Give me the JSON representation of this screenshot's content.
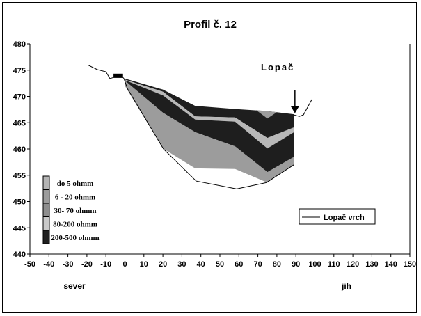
{
  "chart_data": {
    "type": "area",
    "title": "Profil č. 12",
    "xlabel_left": "sever",
    "xlabel_right": "jih",
    "annotation": "Lopač",
    "xlim": [
      -50,
      150
    ],
    "ylim": [
      440,
      480
    ],
    "xticks": [
      -50,
      -40,
      -30,
      -20,
      -10,
      0,
      10,
      20,
      30,
      40,
      50,
      60,
      70,
      80,
      90,
      100,
      110,
      120,
      130,
      140,
      150
    ],
    "yticks": [
      440,
      445,
      450,
      455,
      460,
      465,
      470,
      475,
      480
    ],
    "grid": false,
    "legend_layers": {
      "placement": "bottom-left",
      "entries": [
        {
          "label": "do 5 ohmm",
          "color": "#b4b4b4"
        },
        {
          "label": "6 - 20 ohmm",
          "color": "#9c9c9c"
        },
        {
          "label": "30- 70 ohmm",
          "color": "#8e8e8e"
        },
        {
          "label": "80-200 ohmm",
          "color": "#c8c8c8"
        },
        {
          "label": "200-500 ohmm",
          "color": "#202020"
        }
      ]
    },
    "legend_series": {
      "placement": "bottom-right",
      "label": "Lopač vrch"
    },
    "stations_x": [
      0,
      20,
      37,
      58,
      75,
      89
    ],
    "boundaries": [
      [
        473.4,
        471.3,
        468.2,
        467.6,
        467.2,
        466.6
      ],
      [
        473.2,
        470.9,
        466.2,
        466.0,
        462.1,
        464.1
      ],
      [
        473.1,
        470.2,
        465.6,
        465.2,
        460.1,
        463.2
      ],
      [
        473.0,
        466.9,
        463.2,
        460.5,
        455.6,
        458.5
      ],
      [
        472.0,
        460.1,
        456.3,
        456.2,
        453.6,
        457.0
      ]
    ],
    "layer_colors": [
      "#1e1e1e",
      "#b8b8b8",
      "#1e1e1e",
      "#9c9c9c"
    ],
    "series": [
      {
        "name": "Lopač vrch",
        "x": [
          -19.6,
          -14.5,
          -10,
          -7.9,
          -6,
          -1,
          -0.5,
          1.3,
          20.3,
          37.5,
          58.8,
          74.5,
          89
        ],
        "y": [
          476.0,
          475.1,
          474.7,
          473.4,
          473.6,
          473.6,
          473.4,
          471.5,
          460.0,
          453.9,
          452.4,
          453.6,
          457.0
        ]
      },
      {
        "name": "Lopač vrch (right)",
        "x": [
          88.8,
          91.8,
          94,
          98.4
        ],
        "y": [
          466.5,
          466.2,
          466.5,
          469.4
        ]
      }
    ],
    "top_triangle": {
      "x": [
        69,
        75,
        80
      ],
      "y": [
        467.4,
        465.8,
        467.0
      ],
      "color": "#9c9c9c"
    },
    "marker": {
      "x": [
        -6,
        -1
      ],
      "y": 474.0
    },
    "arrow": {
      "x": 89.5,
      "y_from": 471.2,
      "y_to": 466.8
    }
  }
}
